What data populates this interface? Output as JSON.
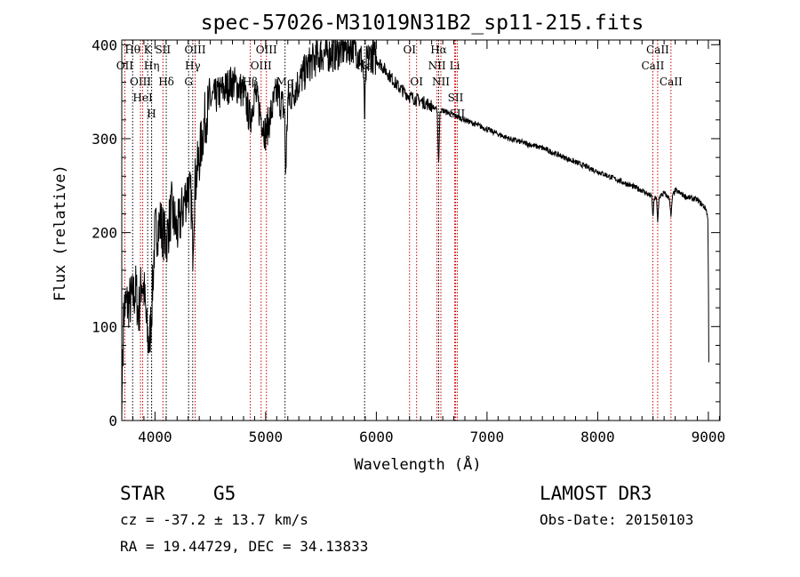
{
  "chart_data": {
    "type": "line",
    "title": "spec-57026-M31019N31B2_sp11-215.fits",
    "xlabel": "Wavelength (Å)",
    "ylabel": "Flux (relative)",
    "xlim": [
      3700,
      9105
    ],
    "ylim": [
      0,
      405
    ],
    "xticks": [
      4000,
      5000,
      6000,
      7000,
      8000,
      9000
    ],
    "yticks": [
      0,
      100,
      200,
      300,
      400
    ],
    "grid": false,
    "series": [
      {
        "name": "flux",
        "x": [
          3700,
          3705,
          3720,
          3760,
          3800,
          3830,
          3850,
          3880,
          3900,
          3930,
          3950,
          3970,
          4000,
          4050,
          4100,
          4150,
          4200,
          4250,
          4300,
          4330,
          4340,
          4360,
          4400,
          4450,
          4500,
          4600,
          4700,
          4800,
          4860,
          4900,
          5000,
          5100,
          5170,
          5180,
          5200,
          5300,
          5400,
          5500,
          5600,
          5700,
          5800,
          5880,
          5894,
          5910,
          5950,
          6000,
          6100,
          6200,
          6300,
          6400,
          6500,
          6550,
          6563,
          6575,
          6600,
          6800,
          7000,
          7200,
          7500,
          7800,
          8000,
          8200,
          8400,
          8490,
          8498,
          8510,
          8530,
          8542,
          8555,
          8600,
          8650,
          8662,
          8675,
          8700,
          8800,
          8900,
          8980,
          8995,
          9000,
          9005
        ],
        "y": [
          0,
          60,
          120,
          125,
          130,
          140,
          110,
          150,
          140,
          90,
          80,
          120,
          200,
          210,
          190,
          225,
          200,
          225,
          250,
          230,
          180,
          250,
          280,
          320,
          340,
          350,
          360,
          350,
          320,
          350,
          305,
          350,
          330,
          260,
          340,
          360,
          380,
          390,
          390,
          395,
          400,
          380,
          320,
          380,
          390,
          385,
          370,
          355,
          345,
          340,
          335,
          330,
          270,
          330,
          330,
          320,
          310,
          300,
          290,
          275,
          265,
          255,
          245,
          238,
          215,
          235,
          238,
          210,
          238,
          242,
          236,
          215,
          238,
          245,
          238,
          235,
          225,
          215,
          150,
          40
        ]
      }
    ],
    "line_markers": [
      {
        "wave": 3727,
        "label": "OII",
        "row": 2,
        "color": "#cc0000"
      },
      {
        "wave": 3798,
        "label": "Hθ",
        "row": 1,
        "color": "#000000"
      },
      {
        "wave": 3869,
        "label": "OIII",
        "row": 3,
        "color": "#cc0000"
      },
      {
        "wave": 3889,
        "label": "HeI",
        "row": 2,
        "color": "#cc0000"
      },
      {
        "wave": 3934,
        "label": "K",
        "row": 1,
        "color": "#000000"
      },
      {
        "wave": 3970,
        "label": "Hη",
        "row": 3,
        "color": "#cc0000"
      },
      {
        "wave": 3969,
        "label": "H",
        "row": 3,
        "color": "#000000"
      },
      {
        "wave": 4072,
        "label": "SII",
        "row": 2,
        "color": "#cc0000"
      },
      {
        "wave": 4102,
        "label": "Hδ",
        "row": 1,
        "color": "#000000"
      },
      {
        "wave": 4304,
        "label": "G",
        "row": 3,
        "color": "#000000"
      },
      {
        "wave": 4341,
        "label": "Hγ",
        "row": 2,
        "color": "#000000"
      },
      {
        "wave": 4363,
        "label": "OIII",
        "row": 1,
        "color": "#cc0000"
      },
      {
        "wave": 4861,
        "label": "Hβ",
        "row": 3,
        "color": "#cc0000"
      },
      {
        "wave": 4959,
        "label": "OIII",
        "row": 2,
        "color": "#cc0000"
      },
      {
        "wave": 5007,
        "label": "OIII",
        "row": 1,
        "color": "#cc0000"
      },
      {
        "wave": 5175,
        "label": "Mg",
        "row": 3,
        "color": "#000000"
      },
      {
        "wave": 5894,
        "label": "Na",
        "row": 2,
        "color": "#000000"
      },
      {
        "wave": 6300,
        "label": "OI",
        "row": 1,
        "color": "#cc0000"
      },
      {
        "wave": 6364,
        "label": "OI",
        "row": 3,
        "color": "#cc0000"
      },
      {
        "wave": 6548,
        "label": "NII",
        "row": 2,
        "color": "#cc0000"
      },
      {
        "wave": 6563,
        "label": "Hα",
        "row": 1,
        "color": "#000000"
      },
      {
        "wave": 6583,
        "label": "NII",
        "row": 3,
        "color": "#cc0000"
      },
      {
        "wave": 6708,
        "label": "Li",
        "row": 2,
        "color": "#cc0000"
      },
      {
        "wave": 6716,
        "label": "SII",
        "row": 1,
        "color": "#cc0000"
      },
      {
        "wave": 6731,
        "label": "SII",
        "row": 3,
        "color": "#cc0000"
      },
      {
        "wave": 8498,
        "label": "CaII",
        "row": 2,
        "color": "#cc0000"
      },
      {
        "wave": 8542,
        "label": "CaII",
        "row": 1,
        "color": "#cc0000"
      },
      {
        "wave": 8662,
        "label": "CaII",
        "row": 3,
        "color": "#cc0000"
      }
    ]
  },
  "info": {
    "object_class": "STAR",
    "subclass": "G5",
    "survey": "LAMOST DR3",
    "cz": "cz = -37.2 ± 13.7 km/s",
    "obs_date": "Obs-Date: 20150103",
    "coords": "RA =  19.44729, DEC =  34.13833"
  }
}
